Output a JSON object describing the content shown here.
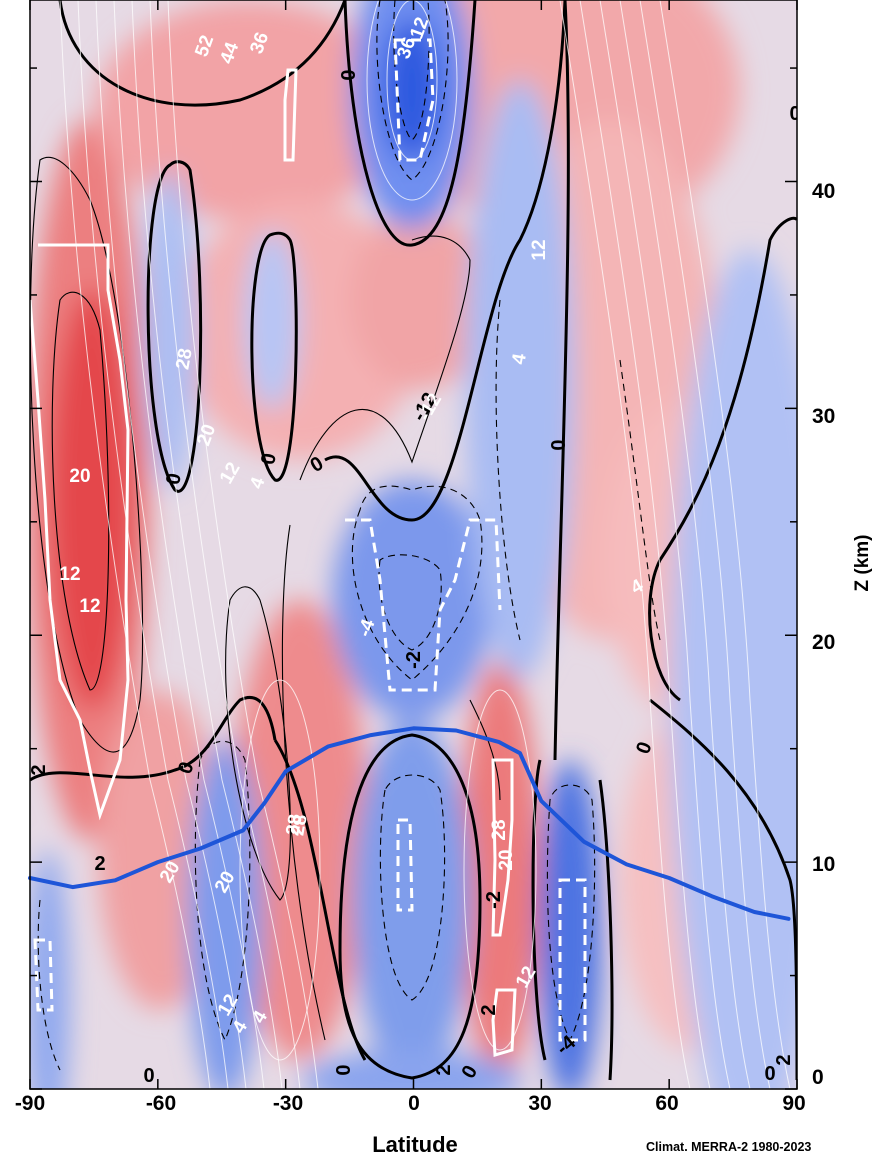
{
  "chart_data": {
    "type": "heatmap",
    "title": "",
    "xlabel": "Latitude",
    "ylabel": "Z (km)",
    "credit": "Climat. MERRA-2 1980-2023",
    "xlim": [
      -90,
      90
    ],
    "ylim": [
      0,
      48
    ],
    "x_ticks": [
      "-90",
      "-60",
      "-30",
      "0",
      "30",
      "60",
      "90"
    ],
    "y_ticks": [
      "0",
      "10",
      "20",
      "30",
      "40"
    ],
    "colors": {
      "positive": "#e8474c",
      "negative": "#3f6fe6",
      "neutral": "#e7dbe6",
      "tropopause": "#1e55d8",
      "significance_outline": "#ffffff"
    },
    "tropopause": {
      "lat": [
        -90,
        -80,
        -70,
        -60,
        -50,
        -40,
        -35,
        -30,
        -20,
        -10,
        0,
        10,
        20,
        25,
        30,
        40,
        50,
        60,
        70,
        80,
        88
      ],
      "z": [
        9.3,
        8.9,
        9.2,
        10.0,
        10.6,
        11.4,
        12.6,
        14.0,
        15.1,
        15.6,
        15.9,
        15.8,
        15.3,
        14.8,
        12.7,
        10.9,
        9.9,
        9.3,
        8.5,
        7.8,
        7.5
      ]
    },
    "contour_labels_black": [
      "0",
      "0",
      "0",
      "0",
      "0",
      "0",
      "0",
      "0",
      "0",
      "0",
      "0",
      "0",
      "2",
      "2",
      "2",
      "2",
      "2",
      "-2",
      "-2",
      "-12",
      "-4"
    ],
    "contour_labels_white": [
      "52",
      "44",
      "36",
      "36",
      "28",
      "20",
      "12",
      "4",
      "28",
      "20",
      "12",
      "4",
      "12",
      "20",
      "28",
      "12",
      "4",
      "28",
      "20",
      "12",
      "20",
      "4",
      "12",
      "-12",
      "-4",
      "4",
      "12"
    ]
  }
}
